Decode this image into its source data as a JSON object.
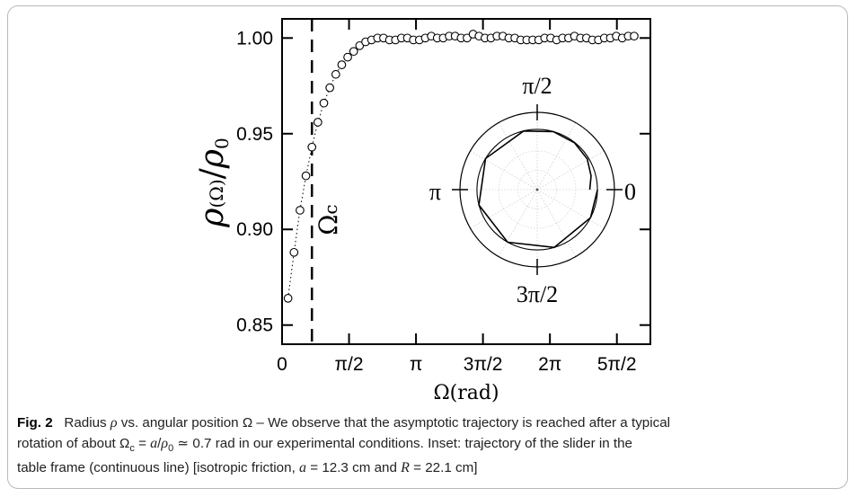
{
  "figure": {
    "caption_label": "Fig. 2",
    "caption_lines": [
      {
        "parts": [
          {
            "t": "Radius "
          },
          {
            "t": "ρ",
            "i": true
          },
          {
            "t": " vs. angular position Ω – We observe that the asymptotic trajectory is reached after a typical"
          }
        ]
      },
      {
        "parts": [
          {
            "t": "rotation of about Ω"
          },
          {
            "t": "c",
            "sub": true
          },
          {
            "t": " = "
          },
          {
            "t": "a",
            "i": true
          },
          {
            "t": "/"
          },
          {
            "t": "ρ",
            "i": true
          },
          {
            "t": "0",
            "sub": true
          },
          {
            "t": " ≃ 0.7 rad in our experimental conditions. Inset: trajectory of the slider in the"
          }
        ]
      },
      {
        "parts": [
          {
            "t": "table frame (continuous line) [isotropic friction, "
          },
          {
            "t": "a",
            "i": true
          },
          {
            "t": " = 12.3 cm and "
          },
          {
            "t": "R",
            "i": true
          },
          {
            "t": " = 22.1 cm]"
          }
        ]
      }
    ]
  },
  "chart_data": [
    {
      "type": "scatter",
      "xlabel": "Ω(rad)",
      "ylabel": "ρ(Ω)/ρ0",
      "ylim": [
        0.84,
        1.01
      ],
      "xlim": [
        0,
        8.64
      ],
      "yticks": [
        0.85,
        0.9,
        0.95,
        1.0
      ],
      "ytick_labels": [
        "0.85",
        "0.90",
        "0.95",
        "1.00"
      ],
      "xticks": [
        0,
        1.5708,
        3.1416,
        4.7124,
        6.2832,
        7.854
      ],
      "xtick_labels": [
        "0",
        "π/2",
        "π",
        "3π/2",
        "2π",
        "5π/2"
      ],
      "marker": "open-circle",
      "connect": "dotted",
      "annotation": {
        "text": "Ω",
        "sub": "c",
        "x": 0.7
      },
      "x": [
        0.14,
        0.28,
        0.42,
        0.56,
        0.7,
        0.84,
        0.98,
        1.12,
        1.26,
        1.4,
        1.54,
        1.68,
        1.82,
        1.96,
        2.1,
        2.24,
        2.38,
        2.52,
        2.66,
        2.8,
        2.94,
        3.08,
        3.22,
        3.36,
        3.5,
        3.64,
        3.78,
        3.92,
        4.06,
        4.2,
        4.34,
        4.48,
        4.62,
        4.76,
        4.9,
        5.04,
        5.18,
        5.32,
        5.46,
        5.6,
        5.74,
        5.88,
        6.02,
        6.16,
        6.3,
        6.44,
        6.58,
        6.72,
        6.86,
        7.0,
        7.14,
        7.28,
        7.42,
        7.56,
        7.7,
        7.84,
        7.98,
        8.12,
        8.26
      ],
      "y": [
        0.864,
        0.888,
        0.91,
        0.928,
        0.943,
        0.956,
        0.966,
        0.974,
        0.981,
        0.986,
        0.99,
        0.993,
        0.996,
        0.998,
        0.999,
        1.0,
        1.0,
        0.999,
        0.999,
        1.0,
        1.0,
        0.999,
        0.999,
        1.0,
        1.001,
        1.0,
        1.0,
        1.001,
        1.001,
        1.0,
        1.0,
        1.002,
        1.001,
        1.0,
        1.0,
        1.001,
        1.001,
        1.0,
        1.0,
        0.999,
        0.999,
        0.999,
        0.999,
        1.0,
        1.0,
        0.999,
        1.0,
        1.0,
        1.001,
        1.0,
        1.0,
        0.999,
        0.999,
        1.0,
        1.0,
        1.001,
        1.0,
        1.001,
        1.001
      ]
    },
    {
      "type": "line",
      "inset": true,
      "tick_labels": [
        "0",
        "π/2",
        "π",
        "3π/2"
      ],
      "spokes": 12,
      "outer_radius_ratio": 1.0,
      "inner_radius_ratio": 0.78,
      "trajectory": [
        [
          0.0,
          0.68
        ],
        [
          0.25,
          0.72
        ],
        [
          0.55,
          0.76
        ],
        [
          0.9,
          0.775
        ],
        [
          1.3,
          0.779
        ],
        [
          1.8,
          0.779
        ],
        [
          2.6,
          0.78
        ],
        [
          3.4,
          0.78
        ],
        [
          4.2,
          0.78
        ],
        [
          5.0,
          0.78
        ],
        [
          5.8,
          0.78
        ],
        [
          6.28,
          0.78
        ]
      ]
    }
  ]
}
